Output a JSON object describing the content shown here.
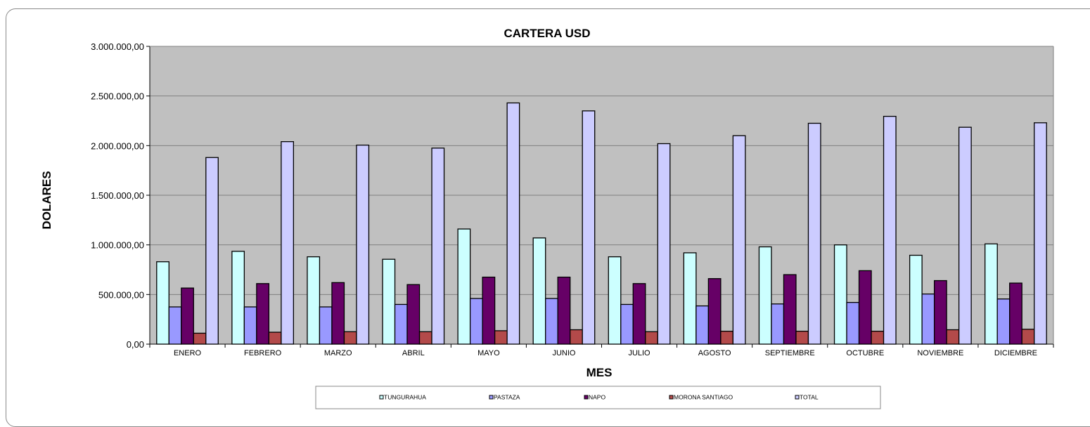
{
  "chart_data": {
    "type": "bar",
    "title": "CARTERA USD",
    "xlabel": "MES",
    "ylabel": "DOLARES",
    "ylim": [
      0,
      3000000
    ],
    "y_ticks": [
      "0,00",
      "500.000,00",
      "1.000.000,00",
      "1.500.000,00",
      "2.000.000,00",
      "2.500.000,00",
      "3.000.000,00"
    ],
    "y_tick_values": [
      0,
      500000,
      1000000,
      1500000,
      2000000,
      2500000,
      3000000
    ],
    "grid": true,
    "legend_position": "bottom",
    "plot_background": "#c0c0c0",
    "categories": [
      "ENERO",
      "FEBRERO",
      "MARZO",
      "ABRIL",
      "MAYO",
      "JUNIO",
      "JULIO",
      "AGOSTO",
      "SEPTIEMBRE",
      "OCTUBRE",
      "NOVIEMBRE",
      "DICIEMBRE"
    ],
    "series": [
      {
        "name": "TUNGURAHUA",
        "color": "#ccffff",
        "values": [
          830000,
          935000,
          880000,
          855000,
          1160000,
          1070000,
          880000,
          920000,
          980000,
          1000000,
          895000,
          1010000
        ]
      },
      {
        "name": "PASTAZA",
        "color": "#9999ff",
        "values": [
          375000,
          375000,
          375000,
          400000,
          460000,
          460000,
          400000,
          385000,
          405000,
          420000,
          505000,
          455000
        ]
      },
      {
        "name": "NAPO",
        "color": "#660066",
        "values": [
          565000,
          610000,
          620000,
          600000,
          675000,
          675000,
          610000,
          660000,
          700000,
          740000,
          640000,
          615000
        ]
      },
      {
        "name": "MORONA SANTIAGO",
        "color": "#b34a4a",
        "values": [
          110000,
          120000,
          125000,
          125000,
          135000,
          145000,
          125000,
          130000,
          130000,
          130000,
          145000,
          150000
        ]
      },
      {
        "name": "TOTAL",
        "color": "#ccccff",
        "values": [
          1880000,
          2040000,
          2005000,
          1975000,
          2430000,
          2350000,
          2020000,
          2100000,
          2225000,
          2295000,
          2185000,
          2230000
        ]
      }
    ]
  }
}
